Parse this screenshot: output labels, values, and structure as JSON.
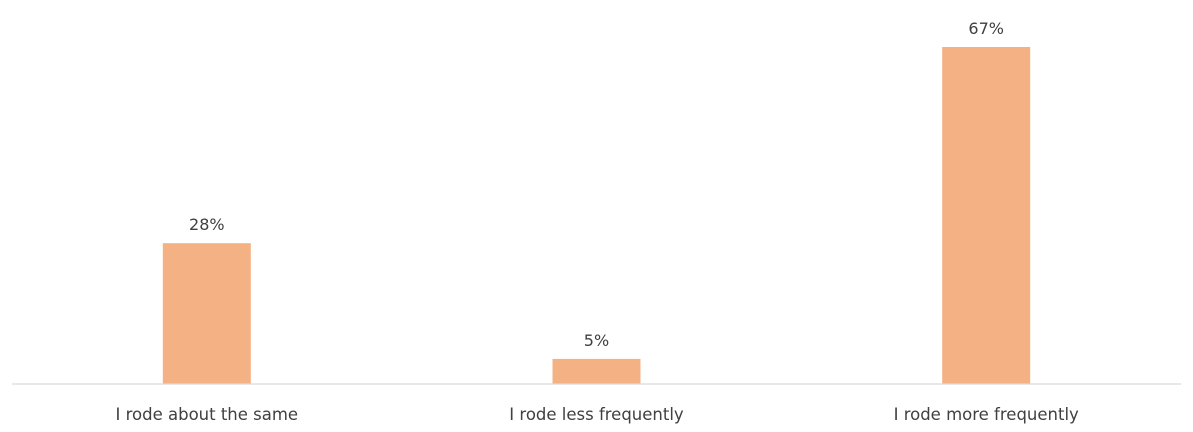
{
  "chart_data": {
    "type": "bar",
    "categories": [
      "I rode about the same",
      "I rode less frequently",
      "I rode more frequently"
    ],
    "values": [
      28,
      5,
      67
    ],
    "value_labels": [
      "28%",
      "5%",
      "67%"
    ],
    "unit": "%",
    "ylim": [
      0,
      67
    ],
    "grid": false,
    "legend": "none",
    "colors": {
      "bar": "#F4B183",
      "axis": "#D9D9D9",
      "text": "#404040"
    }
  }
}
